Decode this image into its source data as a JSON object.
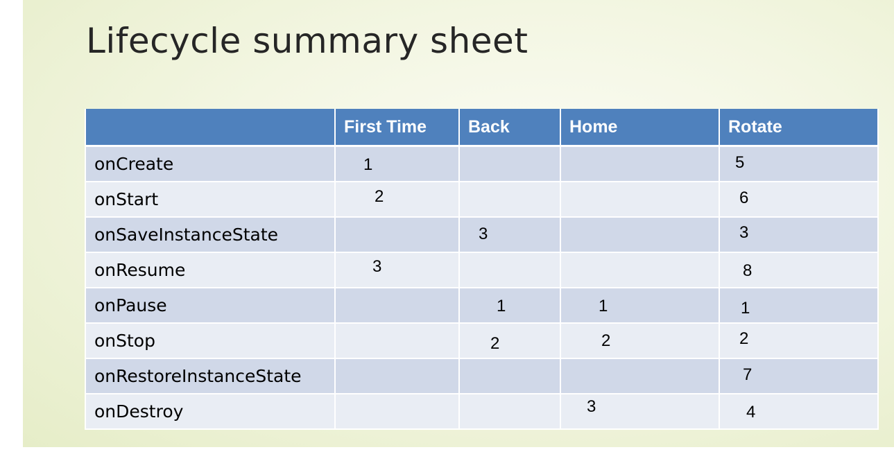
{
  "slide": {
    "title": "Lifecycle summary sheet"
  },
  "table": {
    "headers": [
      "",
      "First Time",
      "Back",
      "Home",
      "Rotate"
    ],
    "rows": [
      {
        "method": "onCreate",
        "first_time": "1",
        "back": "",
        "home": "",
        "rotate": "5"
      },
      {
        "method": "onStart",
        "first_time": "2",
        "back": "",
        "home": "",
        "rotate": "6"
      },
      {
        "method": "onSaveInstanceState",
        "first_time": "",
        "back": "3",
        "home": "",
        "rotate": "3"
      },
      {
        "method": "onResume",
        "first_time": "3",
        "back": "",
        "home": "",
        "rotate": "8"
      },
      {
        "method": "onPause",
        "first_time": "",
        "back": "1",
        "home": "1",
        "rotate": "1"
      },
      {
        "method": "onStop",
        "first_time": "",
        "back": "2",
        "home": "2",
        "rotate": "2"
      },
      {
        "method": "onRestoreInstanceState",
        "first_time": "",
        "back": "",
        "home": "",
        "rotate": "7"
      },
      {
        "method": "onDestroy",
        "first_time": "",
        "back": "",
        "home": "3",
        "rotate": "4"
      }
    ]
  },
  "colors": {
    "header_bg": "#4f81bd",
    "row_odd": "#d0d8e8",
    "row_even": "#e9edf4",
    "title_text": "#262626"
  }
}
